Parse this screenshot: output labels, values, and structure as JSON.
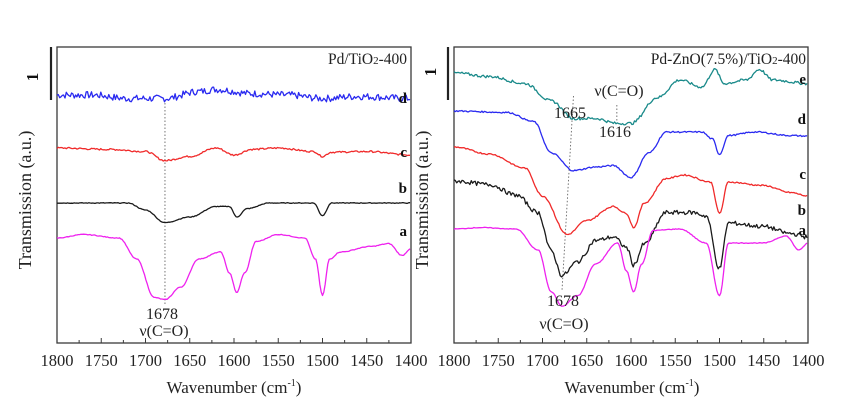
{
  "chart_data": [
    {
      "type": "line",
      "panel": "left",
      "title": "Pd/TiO2-400",
      "xlabel": "Wavenumber (cm-1)",
      "ylabel": "Transmission (a.u.)",
      "xlim": [
        1800,
        1400
      ],
      "x_reversed": true,
      "xticks": [
        1800,
        1750,
        1700,
        1650,
        1600,
        1550,
        1500,
        1450,
        1400
      ],
      "tick_labels": [
        "1800",
        "1750",
        "1700",
        "1650",
        "1600",
        "1550",
        "1500",
        "1450",
        "1400"
      ],
      "scale_bar_label": "1",
      "grid": false,
      "annotations": [
        {
          "text": "1678",
          "x": 1678,
          "position": "below curve a"
        },
        {
          "text": "ν(C=O)",
          "x": 1678,
          "position": "below 1678 label"
        }
      ],
      "guide_lines": [
        {
          "x_top": 1678,
          "x_bottom": 1678
        }
      ],
      "series": [
        {
          "name": "d",
          "color": "#2a2af0",
          "offset": 3.0,
          "noise": 0.05,
          "points": [
            [
              1800,
              0
            ],
            [
              1760,
              0
            ],
            [
              1720,
              -0.05
            ],
            [
              1678,
              -0.05
            ],
            [
              1640,
              0.05
            ],
            [
              1620,
              0.08
            ],
            [
              1580,
              0.02
            ],
            [
              1540,
              0.0
            ],
            [
              1500,
              -0.05
            ],
            [
              1460,
              -0.02
            ],
            [
              1400,
              -0.05
            ]
          ]
        },
        {
          "name": "c",
          "color": "#f02a2a",
          "offset": 2.0,
          "noise": 0.012,
          "points": [
            [
              1800,
              0
            ],
            [
              1740,
              -0.02
            ],
            [
              1700,
              -0.05
            ],
            [
              1678,
              -0.18
            ],
            [
              1650,
              -0.12
            ],
            [
              1620,
              0.0
            ],
            [
              1600,
              -0.1
            ],
            [
              1580,
              -0.02
            ],
            [
              1550,
              0.0
            ],
            [
              1510,
              -0.05
            ],
            [
              1500,
              -0.12
            ],
            [
              1490,
              -0.06
            ],
            [
              1450,
              -0.05
            ],
            [
              1400,
              -0.1
            ]
          ]
        },
        {
          "name": "b",
          "color": "#1a1a1a",
          "offset": 1.0,
          "noise": 0.005,
          "points": [
            [
              1800,
              0
            ],
            [
              1720,
              0
            ],
            [
              1700,
              -0.1
            ],
            [
              1678,
              -0.28
            ],
            [
              1650,
              -0.2
            ],
            [
              1620,
              -0.05
            ],
            [
              1605,
              -0.05
            ],
            [
              1597,
              -0.2
            ],
            [
              1585,
              -0.08
            ],
            [
              1560,
              0.0
            ],
            [
              1510,
              0.0
            ],
            [
              1500,
              -0.18
            ],
            [
              1490,
              0.0
            ],
            [
              1450,
              0.0
            ],
            [
              1400,
              0.0
            ]
          ]
        },
        {
          "name": "a",
          "color": "#ee22ee",
          "offset": 0.0,
          "noise": 0.005,
          "points": [
            [
              1800,
              0
            ],
            [
              1770,
              0.05
            ],
            [
              1730,
              0
            ],
            [
              1710,
              -0.3
            ],
            [
              1690,
              -0.85
            ],
            [
              1678,
              -0.88
            ],
            [
              1660,
              -0.7
            ],
            [
              1640,
              -0.3
            ],
            [
              1615,
              -0.2
            ],
            [
              1605,
              -0.5
            ],
            [
              1597,
              -0.78
            ],
            [
              1588,
              -0.5
            ],
            [
              1575,
              -0.05
            ],
            [
              1550,
              0.05
            ],
            [
              1520,
              0.0
            ],
            [
              1508,
              -0.3
            ],
            [
              1500,
              -0.82
            ],
            [
              1492,
              -0.3
            ],
            [
              1480,
              -0.2
            ],
            [
              1445,
              -0.12
            ],
            [
              1425,
              -0.08
            ],
            [
              1410,
              -0.25
            ],
            [
              1400,
              -0.15
            ]
          ]
        }
      ]
    },
    {
      "type": "line",
      "panel": "right",
      "title": "Pd-ZnO(7.5%)/TiO2-400",
      "xlabel": "Wavenumber (cm-1)",
      "ylabel": "Transmission (a.u.)",
      "xlim": [
        1800,
        1400
      ],
      "x_reversed": true,
      "xticks": [
        1800,
        1750,
        1700,
        1650,
        1600,
        1550,
        1500,
        1450,
        1400
      ],
      "tick_labels": [
        "1800",
        "1750",
        "1700",
        "1650",
        "1600",
        "1550",
        "1500",
        "1450",
        "1400"
      ],
      "scale_bar_label": "1",
      "grid": false,
      "annotations": [
        {
          "text": "1665",
          "x": 1665,
          "position": "left of guide line, near curve e"
        },
        {
          "text": "ν(C=O)",
          "x": 1616,
          "position": "above 1616 guide"
        },
        {
          "text": "1616",
          "x": 1616,
          "position": "below curve e"
        },
        {
          "text": "1678",
          "x": 1678,
          "position": "below curve a"
        },
        {
          "text": "ν(C=O)",
          "x": 1678,
          "position": "below 1678 label"
        }
      ],
      "guide_lines": [
        {
          "x_top": 1665,
          "x_bottom": 1678
        },
        {
          "x_top": 1616,
          "x_bottom": 1616
        }
      ],
      "series": [
        {
          "name": "e",
          "color": "#1a8a8a",
          "offset": 4.0,
          "noise": 0.02,
          "points": [
            [
              1800,
              0
            ],
            [
              1760,
              -0.05
            ],
            [
              1720,
              -0.15
            ],
            [
              1690,
              -0.4
            ],
            [
              1665,
              -0.65
            ],
            [
              1640,
              -0.65
            ],
            [
              1616,
              -0.72
            ],
            [
              1600,
              -0.72
            ],
            [
              1570,
              -0.35
            ],
            [
              1545,
              -0.1
            ],
            [
              1520,
              -0.2
            ],
            [
              1505,
              0.05
            ],
            [
              1495,
              -0.15
            ],
            [
              1470,
              -0.1
            ],
            [
              1455,
              0.05
            ],
            [
              1440,
              -0.1
            ],
            [
              1400,
              -0.15
            ]
          ]
        },
        {
          "name": "d",
          "color": "#2a2af0",
          "offset": 3.0,
          "noise": 0.01,
          "points": [
            [
              1800,
              0
            ],
            [
              1740,
              -0.02
            ],
            [
              1710,
              -0.15
            ],
            [
              1690,
              -0.6
            ],
            [
              1665,
              -0.85
            ],
            [
              1640,
              -0.8
            ],
            [
              1620,
              -0.78
            ],
            [
              1600,
              -0.95
            ],
            [
              1580,
              -0.6
            ],
            [
              1560,
              -0.3
            ],
            [
              1520,
              -0.3
            ],
            [
              1508,
              -0.4
            ],
            [
              1500,
              -0.62
            ],
            [
              1490,
              -0.35
            ],
            [
              1460,
              -0.3
            ],
            [
              1420,
              -0.35
            ],
            [
              1400,
              -0.36
            ]
          ]
        },
        {
          "name": "c",
          "color": "#f02a2a",
          "offset": 2.0,
          "noise": 0.01,
          "points": [
            [
              1800,
              0
            ],
            [
              1760,
              -0.1
            ],
            [
              1720,
              -0.3
            ],
            [
              1700,
              -0.7
            ],
            [
              1672,
              -1.25
            ],
            [
              1650,
              -1.05
            ],
            [
              1620,
              -0.85
            ],
            [
              1605,
              -0.95
            ],
            [
              1597,
              -1.15
            ],
            [
              1585,
              -0.8
            ],
            [
              1560,
              -0.45
            ],
            [
              1540,
              -0.4
            ],
            [
              1510,
              -0.5
            ],
            [
              1500,
              -0.95
            ],
            [
              1490,
              -0.5
            ],
            [
              1450,
              -0.55
            ],
            [
              1420,
              -0.65
            ],
            [
              1400,
              -0.7
            ]
          ]
        },
        {
          "name": "b",
          "color": "#1a1a1a",
          "offset": 1.0,
          "noise": 0.03,
          "points": [
            [
              1800,
              0
            ],
            [
              1760,
              -0.05
            ],
            [
              1730,
              -0.2
            ],
            [
              1705,
              -0.45
            ],
            [
              1690,
              -1.0
            ],
            [
              1678,
              -1.35
            ],
            [
              1660,
              -1.15
            ],
            [
              1640,
              -0.85
            ],
            [
              1620,
              -0.8
            ],
            [
              1605,
              -0.95
            ],
            [
              1597,
              -1.2
            ],
            [
              1585,
              -0.9
            ],
            [
              1560,
              -0.45
            ],
            [
              1530,
              -0.45
            ],
            [
              1515,
              -0.5
            ],
            [
              1500,
              -1.25
            ],
            [
              1490,
              -0.6
            ],
            [
              1450,
              -0.65
            ],
            [
              1420,
              -0.75
            ],
            [
              1400,
              -0.8
            ]
          ]
        },
        {
          "name": "a",
          "color": "#ee22ee",
          "offset": 0.0,
          "noise": 0.005,
          "points": [
            [
              1800,
              0
            ],
            [
              1770,
              0.02
            ],
            [
              1730,
              0
            ],
            [
              1705,
              -0.3
            ],
            [
              1690,
              -0.9
            ],
            [
              1678,
              -1.1
            ],
            [
              1660,
              -0.95
            ],
            [
              1640,
              -0.5
            ],
            [
              1615,
              -0.2
            ],
            [
              1605,
              -0.6
            ],
            [
              1597,
              -0.9
            ],
            [
              1588,
              -0.5
            ],
            [
              1575,
              -0.02
            ],
            [
              1545,
              0.0
            ],
            [
              1515,
              -0.2
            ],
            [
              1500,
              -0.95
            ],
            [
              1490,
              -0.2
            ],
            [
              1450,
              -0.2
            ],
            [
              1425,
              -0.1
            ],
            [
              1410,
              -0.3
            ],
            [
              1400,
              -0.2
            ]
          ]
        }
      ]
    }
  ]
}
